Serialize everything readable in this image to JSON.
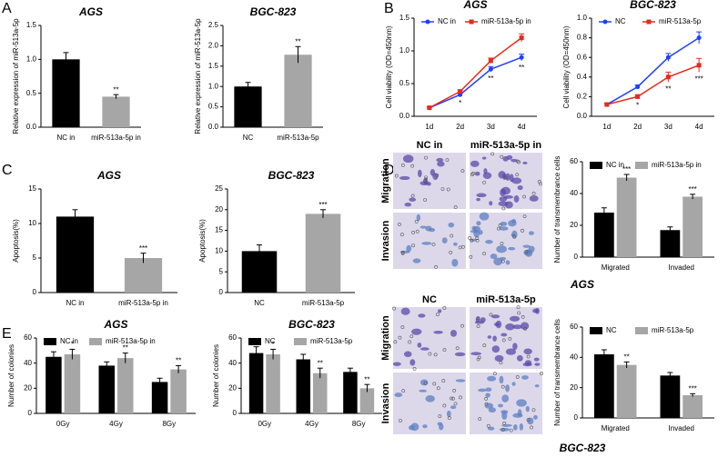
{
  "panels": [
    "A",
    "B",
    "C",
    "D",
    "E"
  ],
  "images": [
    {
      "columns": [
        "NC in",
        "miR-513a-5p in"
      ],
      "rows": [
        "Migration",
        "Invasion"
      ],
      "caption": "AGS"
    },
    {
      "columns": [
        "NC",
        "miR-513a-5p"
      ],
      "rows": [
        "Migration",
        "Invasion"
      ],
      "caption": "BGC-823"
    }
  ],
  "chart_data": [
    {
      "type": "bar",
      "title": "AGS",
      "y_label": "Relative expression of miR-513a-5p",
      "categories": [
        "NC in",
        "miR-513a-5p in"
      ],
      "values": [
        1.0,
        0.45
      ],
      "errors": [
        0.1,
        0.03
      ],
      "colors": [
        "#000000",
        "#a6a6a6"
      ],
      "annotations": [
        null,
        "**"
      ],
      "ylim": [
        0,
        1.5
      ],
      "yticks": [
        {
          "value": 0,
          "label": "0.0"
        },
        {
          "value": 0.5,
          "label": "0.5"
        },
        {
          "value": 1,
          "label": "1.0"
        },
        {
          "value": 1.5,
          "label": "1.5"
        }
      ]
    },
    {
      "type": "bar",
      "title": "BGC-823",
      "y_label": "Relative expression of miR-513a-5p",
      "categories": [
        "NC",
        "miR-513a-5p"
      ],
      "values": [
        1.0,
        1.78
      ],
      "errors": [
        0.1,
        0.2
      ],
      "colors": [
        "#000000",
        "#a6a6a6"
      ],
      "annotations": [
        null,
        "**"
      ],
      "ylim": [
        0,
        2.5
      ],
      "yticks": [
        {
          "value": 0,
          "label": "0.0"
        },
        {
          "value": 0.5,
          "label": "0.5"
        },
        {
          "value": 1,
          "label": "1.0"
        },
        {
          "value": 1.5,
          "label": "1.5"
        },
        {
          "value": 2,
          "label": "2.0"
        },
        {
          "value": 2.5,
          "label": "2.5"
        }
      ]
    },
    {
      "type": "line",
      "title": "AGS",
      "y_label": "Cell viability (OD=450nm)",
      "categories": [
        "1d",
        "2d",
        "3d",
        "4d"
      ],
      "series": [
        {
          "name": "NC in",
          "color": "#1f3fff",
          "values": [
            0.13,
            0.33,
            0.72,
            0.9
          ],
          "errors": [
            0.01,
            0.02,
            0.04,
            0.05
          ]
        },
        {
          "name": "miR-513a-5p in",
          "color": "#e8291c",
          "values": [
            0.13,
            0.38,
            0.85,
            1.2
          ],
          "errors": [
            0.01,
            0.02,
            0.04,
            0.06
          ]
        }
      ],
      "annotations": [
        null,
        "*",
        "**",
        "**"
      ],
      "ylim": [
        0,
        1.5
      ],
      "yticks": [
        {
          "value": 0,
          "label": "0.0"
        },
        {
          "value": 0.5,
          "label": "0.5"
        },
        {
          "value": 1,
          "label": "1.0"
        },
        {
          "value": 1.5,
          "label": "1.5"
        }
      ]
    },
    {
      "type": "line",
      "title": "BGC-823",
      "y_label": "Cell viability (OD=450nm)",
      "categories": [
        "1d",
        "2d",
        "3d",
        "4d"
      ],
      "series": [
        {
          "name": "NC",
          "color": "#1f3fff",
          "values": [
            0.12,
            0.3,
            0.6,
            0.8
          ],
          "errors": [
            0.01,
            0.02,
            0.04,
            0.06
          ]
        },
        {
          "name": "miR-513a-5p",
          "color": "#e8291c",
          "values": [
            0.12,
            0.2,
            0.4,
            0.52
          ],
          "errors": [
            0.01,
            0.02,
            0.05,
            0.07
          ]
        }
      ],
      "annotations": [
        null,
        "*",
        "**",
        "***"
      ],
      "ylim": [
        0,
        1.0
      ],
      "yticks": [
        {
          "value": 0,
          "label": "0.0"
        },
        0.2,
        0.4,
        0.6,
        0.8,
        {
          "value": 1,
          "label": "1.0"
        }
      ]
    },
    {
      "type": "bar",
      "title": "AGS",
      "y_label": "Apoptosis(%)",
      "categories": [
        "NC in",
        "miR-513a-5p in"
      ],
      "values": [
        11,
        5
      ],
      "errors": [
        1,
        0.7
      ],
      "colors": [
        "#000000",
        "#a6a6a6"
      ],
      "annotations": [
        null,
        "***"
      ],
      "ylim": [
        0,
        15
      ],
      "yticks": [
        0,
        5,
        10,
        15
      ]
    },
    {
      "type": "bar",
      "title": "BGC-823",
      "y_label": "Apoptosis(%)",
      "categories": [
        "NC",
        "miR-513a-5p"
      ],
      "values": [
        10,
        19
      ],
      "errors": [
        1.5,
        1
      ],
      "colors": [
        "#000000",
        "#a6a6a6"
      ],
      "annotations": [
        null,
        "***"
      ],
      "ylim": [
        0,
        25
      ],
      "yticks": [
        0,
        5,
        10,
        15,
        20,
        25
      ]
    },
    {
      "type": "bar",
      "y_label": "Number of transmembrance cells",
      "categories": [
        "Migrated",
        "Invaded"
      ],
      "series": [
        {
          "name": "NC in",
          "color": "#000000",
          "values": [
            28,
            17
          ],
          "errors": [
            3,
            2
          ]
        },
        {
          "name": "miR-513a-5p in",
          "color": "#a6a6a6",
          "values": [
            50,
            38
          ],
          "errors": [
            2,
            1.5
          ]
        }
      ],
      "annotations": [
        "***",
        "***"
      ],
      "ylim": [
        0,
        60
      ],
      "yticks": [
        0,
        20,
        40,
        60
      ]
    },
    {
      "type": "bar",
      "title": "AGS",
      "y_label": "Number of colonies",
      "categories": [
        "0Gy",
        "4Gy",
        "8Gy"
      ],
      "series": [
        {
          "name": "NC in",
          "color": "#000000",
          "values": [
            45,
            38,
            25
          ],
          "errors": [
            4,
            3,
            3
          ]
        },
        {
          "name": "miR-513a-5p in",
          "color": "#a6a6a6",
          "values": [
            47,
            44,
            35
          ],
          "errors": [
            4,
            4,
            3
          ]
        }
      ],
      "annotations": [
        "*",
        "**",
        "**"
      ],
      "ylim": [
        0,
        60
      ],
      "yticks": [
        0,
        20,
        40,
        60
      ]
    },
    {
      "type": "bar",
      "title": "BGC-823",
      "y_label": "Number of colonies",
      "categories": [
        "0Gy",
        "4Gy",
        "8Gy"
      ],
      "series": [
        {
          "name": "NC",
          "color": "#000000",
          "values": [
            48,
            43,
            33
          ],
          "errors": [
            5,
            4,
            3
          ]
        },
        {
          "name": "miR-513a-5p",
          "color": "#a6a6a6",
          "values": [
            47,
            32,
            20
          ],
          "errors": [
            4,
            4,
            3
          ]
        }
      ],
      "annotations": [
        "*",
        "**",
        "**"
      ],
      "ylim": [
        0,
        60
      ],
      "yticks": [
        0,
        20,
        40,
        60
      ]
    },
    {
      "type": "bar",
      "y_label": "Number of transmembrance cells",
      "categories": [
        "Migrated",
        "Invaded"
      ],
      "series": [
        {
          "name": "NC",
          "color": "#000000",
          "values": [
            42,
            28
          ],
          "errors": [
            3,
            2
          ]
        },
        {
          "name": "miR-513a-5p",
          "color": "#a6a6a6",
          "values": [
            35,
            15
          ],
          "errors": [
            2,
            1
          ]
        }
      ],
      "annotations": [
        "**",
        "***"
      ],
      "ylim": [
        0,
        60
      ],
      "yticks": [
        0,
        20,
        40,
        60
      ]
    }
  ]
}
